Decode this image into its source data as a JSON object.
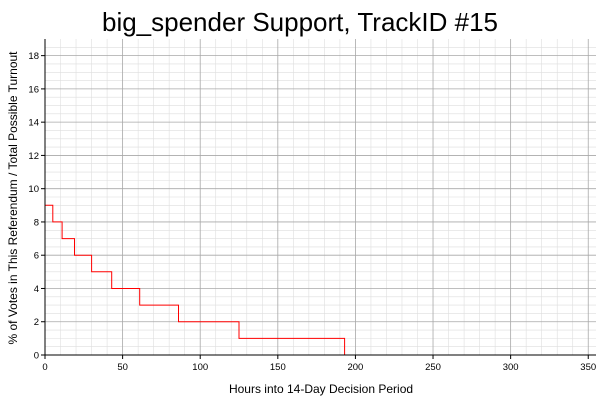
{
  "chart_data": {
    "type": "line",
    "title": "big_spender Support, TrackID #15",
    "xlabel": "Hours into 14-Day Decision Period",
    "ylabel": "% of Votes in This Referendum / Total Possible Turnout",
    "xlim": [
      0,
      355
    ],
    "ylim": [
      0,
      19
    ],
    "xticks": [
      0,
      50,
      100,
      150,
      200,
      250,
      300,
      350
    ],
    "yticks": [
      0,
      2,
      4,
      6,
      8,
      10,
      12,
      14,
      16,
      18
    ],
    "grid": true,
    "line_color": "#ff0000",
    "series": [
      {
        "x": [
          0,
          5,
          5,
          11,
          11,
          19,
          19,
          30,
          30,
          43,
          43,
          61,
          61,
          86,
          86,
          125,
          125,
          193,
          193,
          337
        ],
        "y": [
          9,
          9,
          8,
          8,
          7,
          7,
          6,
          6,
          5,
          5,
          4,
          4,
          3,
          3,
          2,
          2,
          1,
          1,
          0,
          0
        ]
      }
    ]
  }
}
